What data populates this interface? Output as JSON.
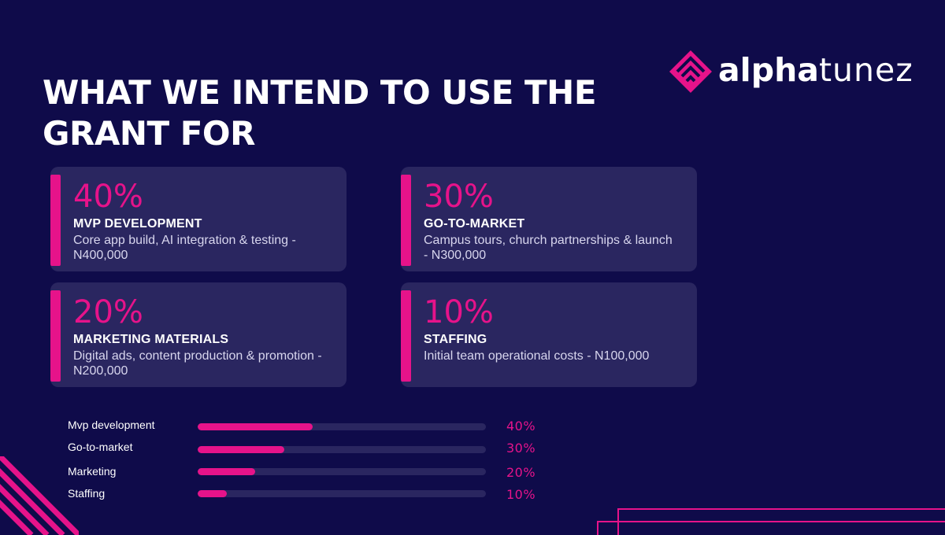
{
  "title": "WHAT WE INTEND TO USE THE GRANT FOR",
  "logo": {
    "bold": "alpha",
    "light": "tunez"
  },
  "colors": {
    "background": "#0f0b4a",
    "card": "#2a2660",
    "accent": "#e6138a"
  },
  "cards": [
    {
      "percent": "40%",
      "heading": "MVP DEVELOPMENT",
      "description": "Core app build, AI integration & testing - N400,000"
    },
    {
      "percent": "30%",
      "heading": "GO-TO-MARKET",
      "description": "Campus tours, church partnerships & launch - N300,000"
    },
    {
      "percent": "20%",
      "heading": "MARKETING MATERIALS",
      "description": "Digital ads, content production & promotion - N200,000"
    },
    {
      "percent": "10%",
      "heading": "STAFFING",
      "description": "Initial team operational costs - N100,000"
    }
  ],
  "bars": [
    {
      "label": "Mvp development",
      "value": 40,
      "percent_label": "40%"
    },
    {
      "label": "Go-to-market",
      "value": 30,
      "percent_label": "30%"
    },
    {
      "label": "Marketing",
      "value": 20,
      "percent_label": "20%"
    },
    {
      "label": "Staffing",
      "value": 10,
      "percent_label": "10%"
    }
  ]
}
